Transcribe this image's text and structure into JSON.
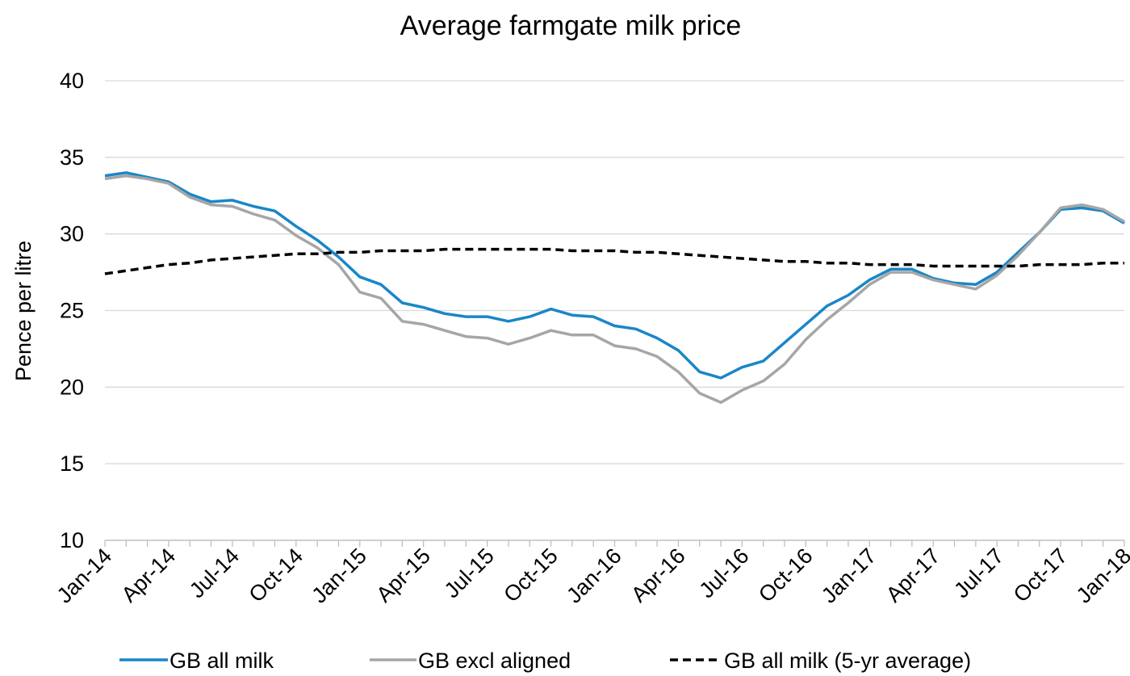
{
  "chart_data": {
    "type": "line",
    "title": "Average farmgate milk price",
    "xlabel": "",
    "ylabel": "Pence per litre",
    "ylim": [
      10,
      40
    ],
    "yticks": [
      "10",
      "15",
      "20",
      "25",
      "30",
      "35",
      "40"
    ],
    "x": [
      "Jan-14",
      "Feb-14",
      "Mar-14",
      "Apr-14",
      "May-14",
      "Jun-14",
      "Jul-14",
      "Aug-14",
      "Sep-14",
      "Oct-14",
      "Nov-14",
      "Dec-14",
      "Jan-15",
      "Feb-15",
      "Mar-15",
      "Apr-15",
      "May-15",
      "Jun-15",
      "Jul-15",
      "Aug-15",
      "Sep-15",
      "Oct-15",
      "Nov-15",
      "Dec-15",
      "Jan-16",
      "Feb-16",
      "Mar-16",
      "Apr-16",
      "May-16",
      "Jun-16",
      "Jul-16",
      "Aug-16",
      "Sep-16",
      "Oct-16",
      "Nov-16",
      "Dec-16",
      "Jan-17",
      "Feb-17",
      "Mar-17",
      "Apr-17",
      "May-17",
      "Jun-17",
      "Jul-17",
      "Aug-17",
      "Sep-17",
      "Oct-17",
      "Nov-17",
      "Dec-17",
      "Jan-18"
    ],
    "xtick_labels": [
      "Jan-14",
      "Apr-14",
      "Jul-14",
      "Oct-14",
      "Jan-15",
      "Apr-15",
      "Jul-15",
      "Oct-15",
      "Jan-16",
      "Apr-16",
      "Jul-16",
      "Oct-16",
      "Jan-17",
      "Apr-17",
      "Jul-17",
      "Oct-17",
      "Jan-18"
    ],
    "grid": true,
    "legend_position": "bottom",
    "series": [
      {
        "name": "GB all milk",
        "color": "#1a86c8",
        "style": "solid",
        "values": [
          33.8,
          34.0,
          33.7,
          33.4,
          32.6,
          32.1,
          32.2,
          31.8,
          31.5,
          30.5,
          29.6,
          28.5,
          27.2,
          26.7,
          25.5,
          25.2,
          24.8,
          24.6,
          24.6,
          24.3,
          24.6,
          25.1,
          24.7,
          24.6,
          24.0,
          23.8,
          23.2,
          22.4,
          21.0,
          20.6,
          21.3,
          21.7,
          22.9,
          24.1,
          25.3,
          26.0,
          27.0,
          27.7,
          27.7,
          27.1,
          26.8,
          26.7,
          27.5,
          28.8,
          30.1,
          31.6,
          31.7,
          31.5,
          30.7
        ]
      },
      {
        "name": "GB excl aligned",
        "color": "#a6a6a6",
        "style": "solid",
        "values": [
          33.6,
          33.8,
          33.6,
          33.3,
          32.4,
          31.9,
          31.8,
          31.3,
          30.9,
          29.9,
          29.1,
          28.0,
          26.2,
          25.8,
          24.3,
          24.1,
          23.7,
          23.3,
          23.2,
          22.8,
          23.2,
          23.7,
          23.4,
          23.4,
          22.7,
          22.5,
          22.0,
          21.0,
          19.6,
          19.0,
          19.8,
          20.4,
          21.5,
          23.1,
          24.4,
          25.5,
          26.7,
          27.5,
          27.5,
          27.0,
          26.7,
          26.4,
          27.3,
          28.6,
          30.1,
          31.7,
          31.9,
          31.6,
          30.8
        ]
      },
      {
        "name": "GB all milk (5-yr average)",
        "color": "#000000",
        "style": "dashed",
        "values": [
          27.4,
          27.6,
          27.8,
          28.0,
          28.1,
          28.3,
          28.4,
          28.5,
          28.6,
          28.7,
          28.7,
          28.8,
          28.8,
          28.9,
          28.9,
          28.9,
          29.0,
          29.0,
          29.0,
          29.0,
          29.0,
          29.0,
          28.9,
          28.9,
          28.9,
          28.8,
          28.8,
          28.7,
          28.6,
          28.5,
          28.4,
          28.3,
          28.2,
          28.2,
          28.1,
          28.1,
          28.0,
          28.0,
          28.0,
          27.9,
          27.9,
          27.9,
          27.9,
          27.9,
          28.0,
          28.0,
          28.0,
          28.1,
          28.1
        ]
      }
    ]
  }
}
